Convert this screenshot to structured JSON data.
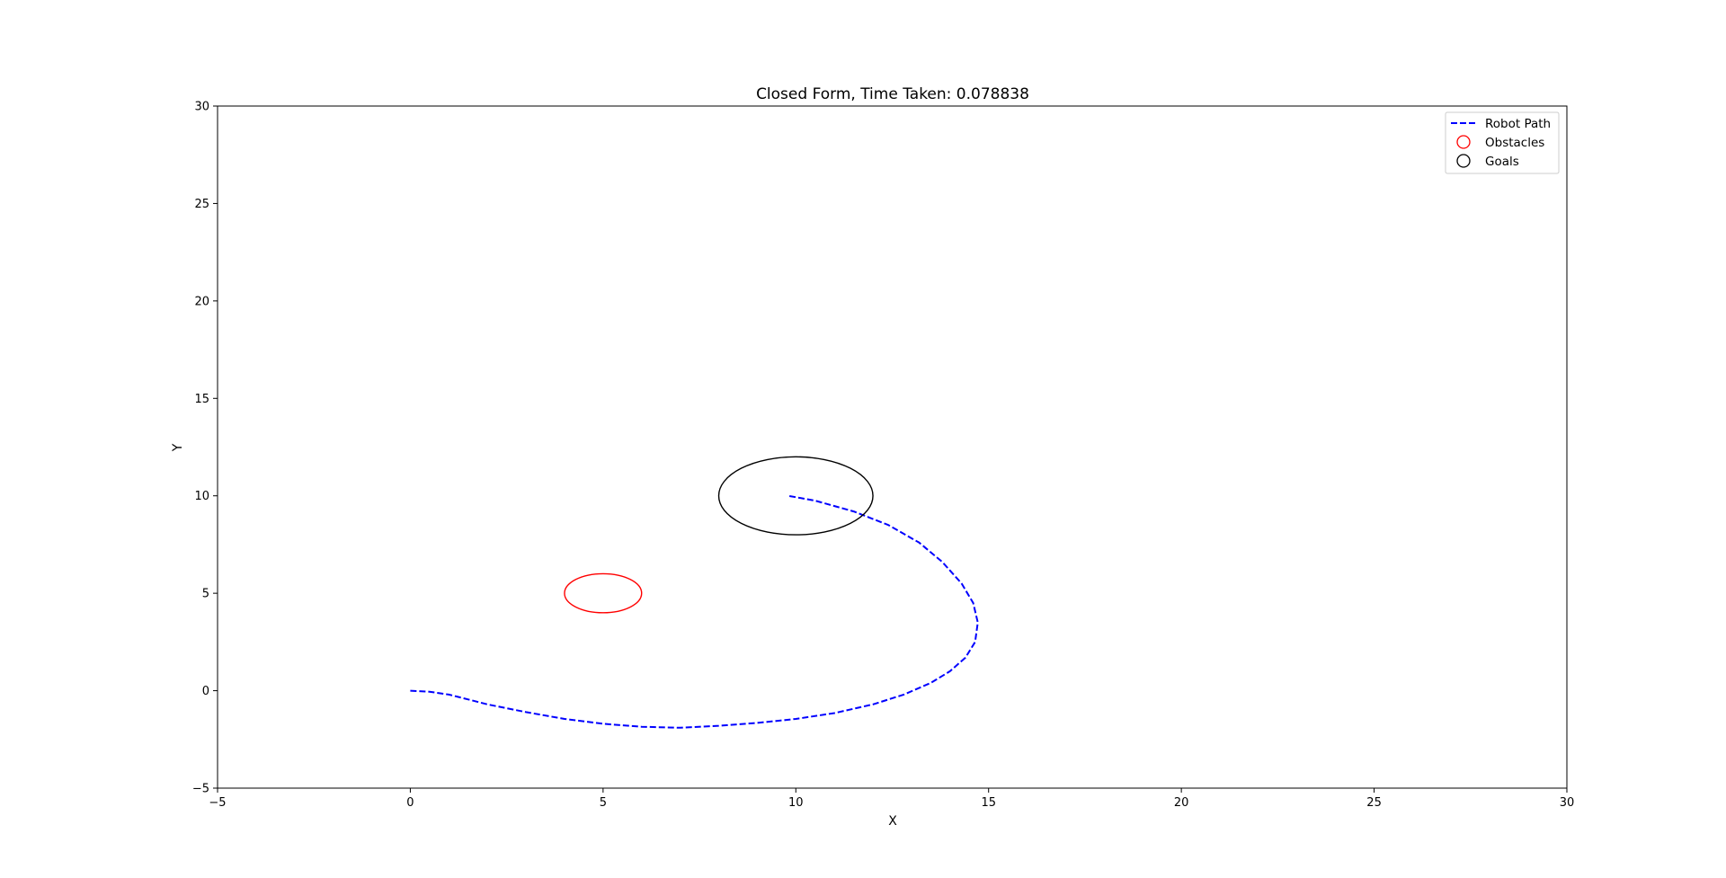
{
  "chart_data": {
    "type": "line",
    "title": "Closed Form, Time Taken: 0.078838",
    "xlabel": "X",
    "ylabel": "Y",
    "xlim": [
      -5,
      30
    ],
    "ylim": [
      -5,
      30
    ],
    "xticks": [
      -5,
      0,
      5,
      10,
      15,
      20,
      25,
      30
    ],
    "yticks": [
      -5,
      0,
      5,
      10,
      15,
      20,
      25,
      30
    ],
    "grid": false,
    "legend_position": "top-right",
    "series": [
      {
        "name": "Robot Path",
        "style": "dashed",
        "color": "#0000ff",
        "points": [
          [
            0,
            0
          ],
          [
            0.5,
            -0.05
          ],
          [
            1.0,
            -0.2
          ],
          [
            1.5,
            -0.45
          ],
          [
            2.0,
            -0.7
          ],
          [
            3.0,
            -1.1
          ],
          [
            4.0,
            -1.45
          ],
          [
            5.0,
            -1.7
          ],
          [
            6.0,
            -1.85
          ],
          [
            7.0,
            -1.9
          ],
          [
            8.0,
            -1.8
          ],
          [
            9.0,
            -1.65
          ],
          [
            10.0,
            -1.45
          ],
          [
            11.0,
            -1.15
          ],
          [
            12.0,
            -0.7
          ],
          [
            12.8,
            -0.2
          ],
          [
            13.5,
            0.4
          ],
          [
            14.0,
            1.0
          ],
          [
            14.4,
            1.7
          ],
          [
            14.65,
            2.5
          ],
          [
            14.72,
            3.5
          ],
          [
            14.6,
            4.5
          ],
          [
            14.3,
            5.5
          ],
          [
            13.8,
            6.6
          ],
          [
            13.2,
            7.6
          ],
          [
            12.4,
            8.5
          ],
          [
            11.5,
            9.2
          ],
          [
            10.5,
            9.75
          ],
          [
            9.8,
            10.0
          ]
        ]
      },
      {
        "name": "Obstacles",
        "style": "circle",
        "color": "#ff0000",
        "circles": [
          {
            "cx": 5,
            "cy": 5,
            "r": 1
          }
        ]
      },
      {
        "name": "Goals",
        "style": "circle",
        "color": "#000000",
        "circles": [
          {
            "cx": 10,
            "cy": 10,
            "r": 2
          }
        ]
      }
    ]
  }
}
